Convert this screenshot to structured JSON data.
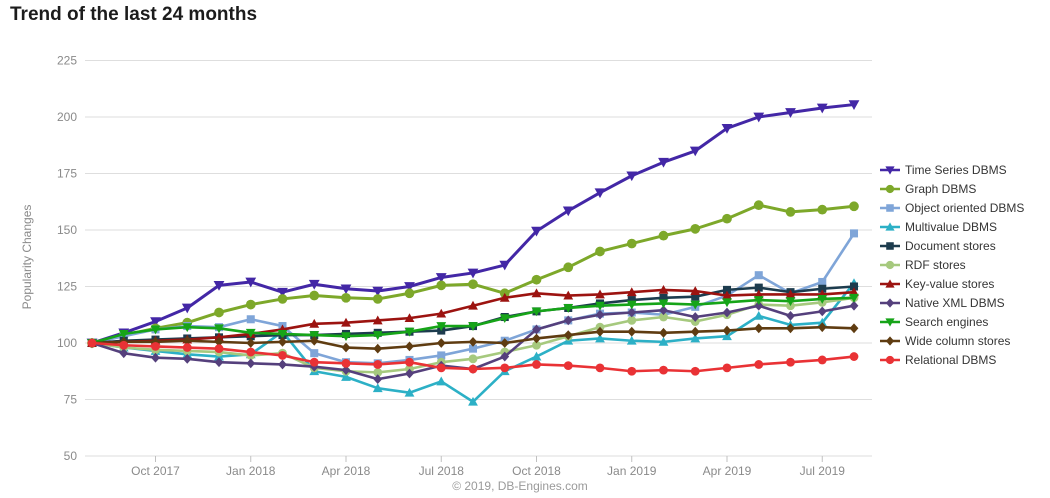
{
  "page": {
    "title": "Trend of the last 24 months",
    "ylabel": "Popularity Changes",
    "footer": "© 2019, DB-Engines.com",
    "colors": {
      "background": "#ffffff",
      "grid": "#dedede",
      "axis_text": "#8a8a8a",
      "tick_mark": "#c0c0c0",
      "title_text": "#1c1c1c",
      "legend_text": "#353535",
      "footer_text": "#9a9a9a"
    }
  },
  "chart_data": {
    "type": "line",
    "title": "Trend of the last 24 months",
    "xlabel": "",
    "ylabel": "Popularity Changes",
    "grid": true,
    "legend_position": "right",
    "ylim": [
      50,
      225
    ],
    "y_ticks": [
      225,
      200,
      175,
      150,
      125,
      100,
      75,
      50
    ],
    "x": [
      "Aug 2017",
      "Sep 2017",
      "Oct 2017",
      "Nov 2017",
      "Dec 2017",
      "Jan 2018",
      "Feb 2018",
      "Mar 2018",
      "Apr 2018",
      "May 2018",
      "Jun 2018",
      "Jul 2018",
      "Aug 2018",
      "Sep 2018",
      "Oct 2018",
      "Nov 2018",
      "Dec 2018",
      "Jan 2019",
      "Feb 2019",
      "Mar 2019",
      "Apr 2019",
      "May 2019",
      "Jun 2019",
      "Jul 2019",
      "Aug 2019"
    ],
    "x_tick_labels": [
      "Oct 2017",
      "Jan 2018",
      "Apr 2018",
      "Jul 2018",
      "Oct 2018",
      "Jan 2019",
      "Apr 2019",
      "Jul 2019"
    ],
    "x_tick_indices": [
      2,
      5,
      8,
      11,
      14,
      17,
      20,
      23
    ],
    "series": [
      {
        "name": "Time Series DBMS",
        "slug": "time-series-dbms",
        "color": "#4327a6",
        "marker": "triangle-down",
        "width": 3,
        "values": [
          100,
          104.5,
          109.5,
          115.5,
          125.5,
          127,
          122.5,
          126,
          124,
          123,
          125,
          129,
          131,
          134.5,
          149.5,
          158.5,
          166.5,
          174,
          180,
          185,
          195,
          200,
          202,
          204,
          205.5
        ]
      },
      {
        "name": "Graph DBMS",
        "slug": "graph-dbms",
        "color": "#7da82a",
        "marker": "circle",
        "width": 3,
        "values": [
          100,
          103.5,
          106.5,
          109,
          113.5,
          117,
          119.5,
          121,
          120,
          119.5,
          122,
          125.5,
          126,
          122,
          128,
          133.5,
          140.5,
          144,
          147.5,
          150.5,
          155,
          161,
          158,
          159,
          160.5
        ]
      },
      {
        "name": "Object oriented DBMS",
        "slug": "object-oriented-dbms",
        "color": "#7fa5d8",
        "marker": "square",
        "width": 2.6,
        "values": [
          100,
          103,
          106,
          107.5,
          107,
          110.5,
          107.5,
          95.5,
          91.5,
          91,
          92.5,
          94.5,
          97.5,
          101,
          106,
          110,
          113,
          113.5,
          112.5,
          116,
          121,
          130,
          122,
          127,
          148.5
        ]
      },
      {
        "name": "Multivalue DBMS",
        "slug": "multivalue-dbms",
        "color": "#2cb0c6",
        "marker": "triangle-up",
        "width": 2.6,
        "values": [
          100,
          98,
          96.5,
          95,
          94,
          95,
          105,
          87.5,
          85,
          80,
          78,
          83,
          74,
          87.5,
          94,
          101,
          102,
          101,
          100.5,
          102,
          103,
          112,
          108,
          109,
          126.5
        ]
      },
      {
        "name": "Document stores",
        "slug": "document-stores",
        "color": "#1d3c4e",
        "marker": "square",
        "width": 2.6,
        "values": [
          100,
          101,
          101.5,
          102,
          102.5,
          103,
          103.5,
          103.5,
          104,
          104.5,
          105,
          105.5,
          107.5,
          111.5,
          114,
          115.5,
          117.5,
          119,
          120,
          120.5,
          123.5,
          124.5,
          122.5,
          124,
          125
        ]
      },
      {
        "name": "RDF stores",
        "slug": "rdf-stores",
        "color": "#a6c97e",
        "marker": "circle",
        "width": 2.6,
        "values": [
          100,
          98,
          97,
          96.5,
          96,
          94.5,
          95.5,
          89,
          87.5,
          87,
          88.5,
          91.5,
          93,
          96,
          99,
          103,
          107,
          110,
          111.5,
          109.5,
          112.5,
          117,
          116.5,
          118,
          120
        ]
      },
      {
        "name": "Key-value stores",
        "slug": "key-value-stores",
        "color": "#9c1310",
        "marker": "triangle-up",
        "width": 2.6,
        "values": [
          100,
          100.5,
          101,
          101.5,
          102.5,
          104,
          106,
          108.5,
          109,
          110,
          111,
          113,
          116.5,
          120,
          122,
          121,
          121.5,
          122.5,
          123.5,
          123,
          121,
          121.5,
          121.5,
          121.5,
          122.5
        ]
      },
      {
        "name": "Native XML DBMS",
        "slug": "native-xml-dbms",
        "color": "#55407c",
        "marker": "diamond",
        "width": 2.6,
        "values": [
          100,
          95.5,
          93.5,
          93,
          91.5,
          91,
          90.5,
          89.5,
          88,
          84,
          86.5,
          90,
          88.5,
          94,
          106,
          110,
          112.5,
          113.5,
          114.5,
          111.5,
          113.5,
          116.5,
          112,
          114,
          116.5
        ]
      },
      {
        "name": "Search engines",
        "slug": "search-engines",
        "color": "#16a418",
        "marker": "triangle-down",
        "width": 2.6,
        "values": [
          100,
          104,
          106,
          107,
          106.5,
          104.5,
          104,
          103.5,
          103,
          103.5,
          105,
          107.5,
          107.5,
          111,
          114,
          115.5,
          116.5,
          117,
          117.5,
          117,
          118,
          119,
          118.5,
          119.5,
          120
        ]
      },
      {
        "name": "Wide column stores",
        "slug": "wide-column-stores",
        "color": "#5f3c11",
        "marker": "diamond",
        "width": 2.6,
        "values": [
          100,
          100.5,
          100.5,
          101,
          100.5,
          100,
          100.5,
          101,
          98,
          97.5,
          98.5,
          100,
          100.5,
          100,
          102,
          103.5,
          105,
          105,
          104.5,
          105,
          105.5,
          106.5,
          106.5,
          107,
          106.5
        ]
      },
      {
        "name": "Relational DBMS",
        "slug": "relational-dbms",
        "color": "#e93235",
        "marker": "circle",
        "width": 2.6,
        "values": [
          100,
          99,
          98.5,
          98,
          97.5,
          96,
          94.5,
          91.5,
          91,
          90.5,
          91.5,
          89,
          88.5,
          89,
          90.5,
          90,
          89,
          87.5,
          88,
          87.5,
          89,
          90.5,
          91.5,
          92.5,
          94
        ]
      }
    ]
  }
}
